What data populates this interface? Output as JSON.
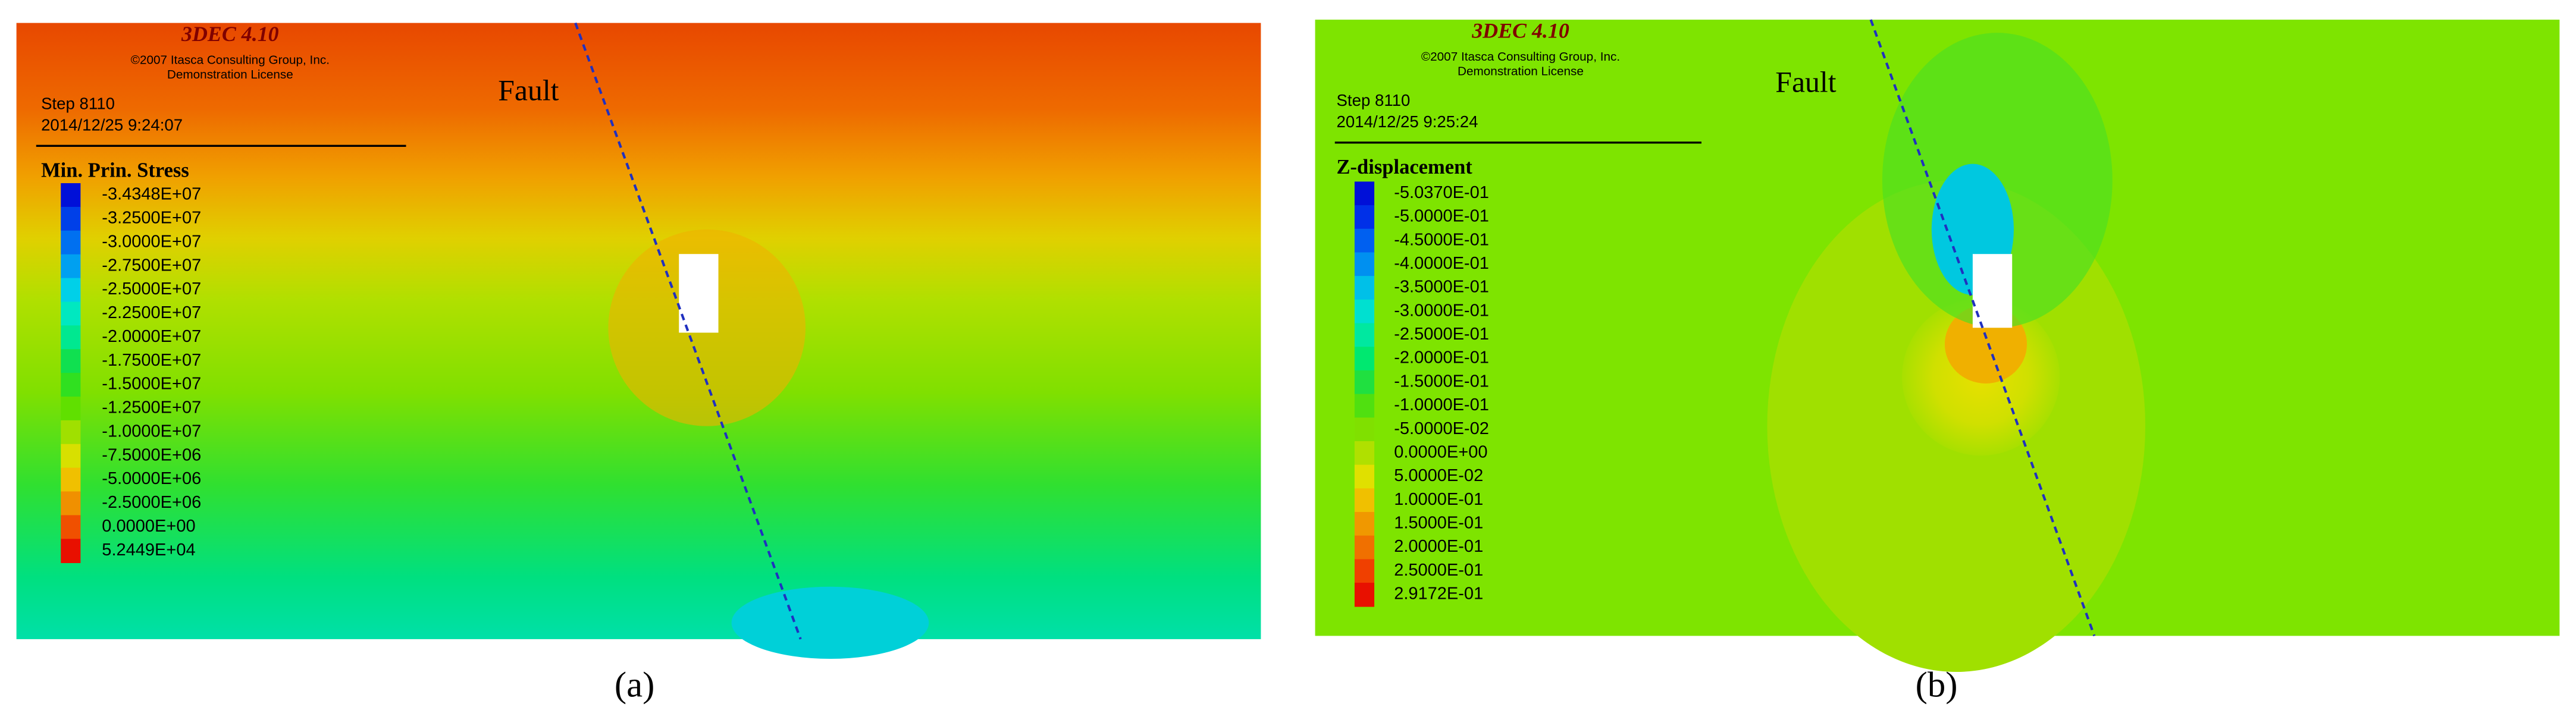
{
  "panels": [
    {
      "program": "3DEC 4.10",
      "copyright": "©2007 Itasca Consulting Group, Inc.",
      "license": "Demonstration License",
      "step": "Step 8110",
      "date": "2014/12/25 9:24:07",
      "legend_title": "Min. Prin. Stress",
      "legend_labels": [
        "-3.4348E+07",
        "-3.2500E+07",
        "-3.0000E+07",
        "-2.7500E+07",
        "-2.5000E+07",
        "-2.2500E+07",
        "-2.0000E+07",
        "-1.7500E+07",
        "-1.5000E+07",
        "-1.2500E+07",
        "-1.0000E+07",
        "-7.5000E+06",
        "-5.0000E+06",
        "-2.5000E+06",
        "0.0000E+00",
        "5.2449E+04"
      ],
      "legend_colors": [
        "#0010d8",
        "#0040e8",
        "#0070f0",
        "#00a0f0",
        "#00d0e8",
        "#00e8c0",
        "#00e890",
        "#10e050",
        "#30e020",
        "#60e000",
        "#a0e000",
        "#d8e000",
        "#f0c000",
        "#f09000",
        "#f05000",
        "#e81000"
      ],
      "fault_label": "Fault",
      "caption": "(a)"
    },
    {
      "program": "3DEC 4.10",
      "copyright": "©2007 Itasca Consulting Group, Inc.",
      "license": "Demonstration License",
      "step": "Step 8110",
      "date": "2014/12/25 9:25:24",
      "legend_title": "Z-displacement",
      "legend_labels": [
        "-5.0370E-01",
        "-5.0000E-01",
        "-4.5000E-01",
        "-4.0000E-01",
        "-3.5000E-01",
        "-3.0000E-01",
        "-2.5000E-01",
        "-2.0000E-01",
        "-1.5000E-01",
        "-1.0000E-01",
        "-5.0000E-02",
        "0.0000E+00",
        "5.0000E-02",
        "1.0000E-01",
        "1.5000E-01",
        "2.0000E-01",
        "2.5000E-01",
        "2.9172E-01"
      ],
      "legend_colors": [
        "#0010d8",
        "#0030e8",
        "#0060f0",
        "#0090f0",
        "#00c0e8",
        "#00e0d0",
        "#00e8a0",
        "#00e870",
        "#20e040",
        "#50e010",
        "#80e000",
        "#b0e000",
        "#e0e000",
        "#f0c000",
        "#f09800",
        "#f07000",
        "#f04000",
        "#e81000"
      ],
      "fault_label": "Fault",
      "caption": "(b)"
    }
  ]
}
